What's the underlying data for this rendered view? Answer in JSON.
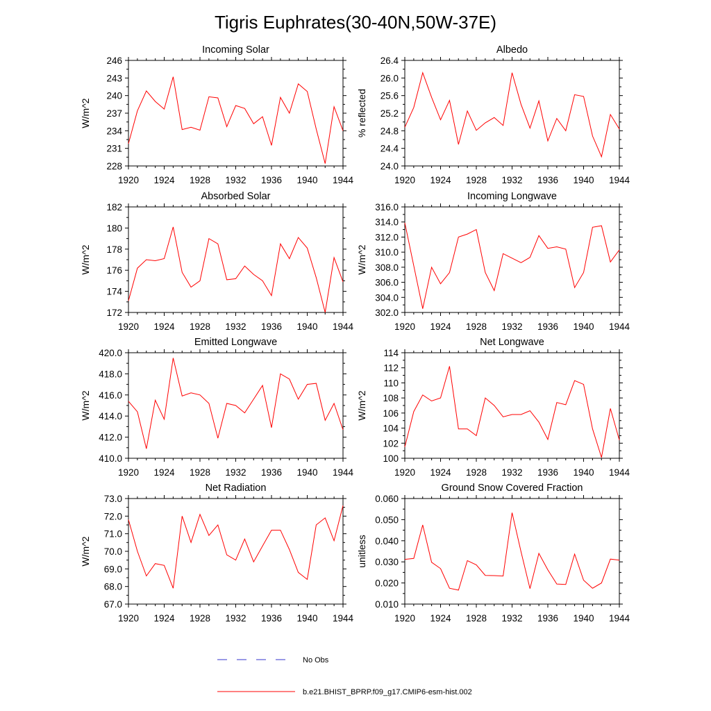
{
  "figure": {
    "title": "Tigris Euphrates(30-40N,50W-37E)"
  },
  "legend": {
    "obs_label": "No Obs",
    "obs_color": "#3333cc",
    "model_label": "b.e21.BHIST_BPRP.f09_g17.CMIP6-esm-hist.002",
    "model_color": "#ff0000"
  },
  "chart_data": [
    {
      "type": "line",
      "title": "Incoming Solar",
      "ylabel": "W/m^2",
      "xlim": [
        1920,
        1944
      ],
      "ylim": [
        228,
        246
      ],
      "xticks": [
        1920,
        1924,
        1928,
        1932,
        1936,
        1940,
        1944
      ],
      "yticks": [
        "228",
        "231",
        "234",
        "237",
        "240",
        "243",
        "246"
      ],
      "x": [
        1920,
        1921,
        1922,
        1923,
        1924,
        1925,
        1926,
        1927,
        1928,
        1929,
        1930,
        1931,
        1932,
        1933,
        1934,
        1935,
        1936,
        1937,
        1938,
        1939,
        1940,
        1941,
        1942,
        1943,
        1944
      ],
      "series": [
        {
          "values": [
            231.8,
            237.4,
            240.8,
            239.0,
            237.7,
            243.2,
            234.2,
            234.6,
            234.1,
            239.8,
            239.6,
            234.7,
            238.3,
            237.8,
            235.2,
            236.4,
            231.5,
            239.7,
            237.0,
            242.0,
            240.7,
            234.3,
            228.4,
            238.1,
            234.0
          ]
        }
      ]
    },
    {
      "type": "line",
      "title": "Albedo",
      "ylabel": "% reflected",
      "xlim": [
        1920,
        1944
      ],
      "ylim": [
        24.0,
        26.4
      ],
      "xticks": [
        1920,
        1924,
        1928,
        1932,
        1936,
        1940,
        1944
      ],
      "yticks": [
        "24.0",
        "24.4",
        "24.8",
        "25.2",
        "25.6",
        "26.0",
        "26.4"
      ],
      "x": [
        1920,
        1921,
        1922,
        1923,
        1924,
        1925,
        1926,
        1927,
        1928,
        1929,
        1930,
        1931,
        1932,
        1933,
        1934,
        1935,
        1936,
        1937,
        1938,
        1939,
        1940,
        1941,
        1942,
        1943,
        1944
      ],
      "series": [
        {
          "values": [
            24.88,
            25.33,
            26.12,
            25.56,
            25.05,
            25.49,
            24.49,
            25.25,
            24.81,
            24.98,
            25.1,
            24.92,
            26.12,
            25.4,
            24.86,
            25.48,
            24.57,
            25.08,
            24.8,
            25.62,
            25.58,
            24.68,
            24.21,
            25.17,
            24.84
          ]
        }
      ]
    },
    {
      "type": "line",
      "title": "Absorbed Solar",
      "ylabel": "W/m^2",
      "xlim": [
        1920,
        1944
      ],
      "ylim": [
        172,
        182
      ],
      "xticks": [
        1920,
        1924,
        1928,
        1932,
        1936,
        1940,
        1944
      ],
      "yticks": [
        "172",
        "174",
        "176",
        "178",
        "180",
        "182"
      ],
      "x": [
        1920,
        1921,
        1922,
        1923,
        1924,
        1925,
        1926,
        1927,
        1928,
        1929,
        1930,
        1931,
        1932,
        1933,
        1934,
        1935,
        1936,
        1937,
        1938,
        1939,
        1940,
        1941,
        1942,
        1943,
        1944
      ],
      "series": [
        {
          "values": [
            173.1,
            176.2,
            177.0,
            176.9,
            177.1,
            180.1,
            175.8,
            174.4,
            175.0,
            179.0,
            178.5,
            175.1,
            175.2,
            176.4,
            175.6,
            175.0,
            173.6,
            178.5,
            177.1,
            179.1,
            178.1,
            175.3,
            172.0,
            177.2,
            174.9
          ]
        }
      ]
    },
    {
      "type": "line",
      "title": "Incoming Longwave",
      "ylabel": "W/m^2",
      "xlim": [
        1920,
        1944
      ],
      "ylim": [
        302,
        316
      ],
      "xticks": [
        1920,
        1924,
        1928,
        1932,
        1936,
        1940,
        1944
      ],
      "yticks": [
        "302.0",
        "304.0",
        "306.0",
        "308.0",
        "310.0",
        "312.0",
        "314.0",
        "316.0"
      ],
      "x": [
        1920,
        1921,
        1922,
        1923,
        1924,
        1925,
        1926,
        1927,
        1928,
        1929,
        1930,
        1931,
        1932,
        1933,
        1934,
        1935,
        1936,
        1937,
        1938,
        1939,
        1940,
        1941,
        1942,
        1943,
        1944
      ],
      "series": [
        {
          "values": [
            313.9,
            308.2,
            302.5,
            308.0,
            305.8,
            307.3,
            312.0,
            312.4,
            313.0,
            307.3,
            304.9,
            309.8,
            309.2,
            308.6,
            309.3,
            312.2,
            310.5,
            310.7,
            310.4,
            305.3,
            307.3,
            313.3,
            313.5,
            308.7,
            310.3
          ]
        }
      ]
    },
    {
      "type": "line",
      "title": "Emitted Longwave",
      "ylabel": "W/m^2",
      "xlim": [
        1920,
        1944
      ],
      "ylim": [
        410,
        420
      ],
      "xticks": [
        1920,
        1924,
        1928,
        1932,
        1936,
        1940,
        1944
      ],
      "yticks": [
        "410.0",
        "412.0",
        "414.0",
        "416.0",
        "418.0",
        "420.0"
      ],
      "x": [
        1920,
        1921,
        1922,
        1923,
        1924,
        1925,
        1926,
        1927,
        1928,
        1929,
        1930,
        1931,
        1932,
        1933,
        1934,
        1935,
        1936,
        1937,
        1938,
        1939,
        1940,
        1941,
        1942,
        1943,
        1944
      ],
      "series": [
        {
          "values": [
            415.4,
            414.4,
            410.9,
            415.5,
            413.7,
            419.5,
            415.9,
            416.2,
            416.0,
            415.2,
            411.9,
            415.2,
            415.0,
            414.3,
            415.6,
            416.9,
            412.9,
            418.0,
            417.5,
            415.6,
            417.0,
            417.1,
            413.6,
            415.2,
            412.7
          ]
        }
      ]
    },
    {
      "type": "line",
      "title": "Net Longwave",
      "ylabel": "W/m^2",
      "xlim": [
        1920,
        1944
      ],
      "ylim": [
        100,
        114
      ],
      "xticks": [
        1920,
        1924,
        1928,
        1932,
        1936,
        1940,
        1944
      ],
      "yticks": [
        "100",
        "102",
        "104",
        "106",
        "108",
        "110",
        "112",
        "114"
      ],
      "x": [
        1920,
        1921,
        1922,
        1923,
        1924,
        1925,
        1926,
        1927,
        1928,
        1929,
        1930,
        1931,
        1932,
        1933,
        1934,
        1935,
        1936,
        1937,
        1938,
        1939,
        1940,
        1941,
        1942,
        1943,
        1944
      ],
      "series": [
        {
          "values": [
            101.5,
            106.2,
            108.4,
            107.6,
            108.0,
            112.2,
            103.9,
            103.9,
            103.0,
            108.0,
            107.0,
            105.5,
            105.8,
            105.8,
            106.3,
            104.8,
            102.5,
            107.4,
            107.1,
            110.3,
            109.8,
            103.9,
            100.1,
            106.6,
            102.4
          ]
        }
      ]
    },
    {
      "type": "line",
      "title": "Net Radiation",
      "ylabel": "W/m^2",
      "xlim": [
        1920,
        1944
      ],
      "ylim": [
        67,
        73
      ],
      "xticks": [
        1920,
        1924,
        1928,
        1932,
        1936,
        1940,
        1944
      ],
      "yticks": [
        "67.0",
        "68.0",
        "69.0",
        "70.0",
        "71.0",
        "72.0",
        "73.0"
      ],
      "x": [
        1920,
        1921,
        1922,
        1923,
        1924,
        1925,
        1926,
        1927,
        1928,
        1929,
        1930,
        1931,
        1932,
        1933,
        1934,
        1935,
        1936,
        1937,
        1938,
        1939,
        1940,
        1941,
        1942,
        1943,
        1944
      ],
      "series": [
        {
          "values": [
            71.8,
            70.0,
            68.6,
            69.3,
            69.2,
            67.9,
            72.0,
            70.5,
            72.1,
            70.9,
            71.5,
            69.8,
            69.5,
            70.7,
            69.4,
            70.3,
            71.2,
            71.2,
            70.1,
            68.8,
            68.4,
            71.5,
            71.9,
            70.6,
            72.6
          ]
        }
      ]
    },
    {
      "type": "line",
      "title": "Ground Snow Covered Fraction",
      "ylabel": "unitless",
      "xlim": [
        1920,
        1944
      ],
      "ylim": [
        0.01,
        0.06
      ],
      "xticks": [
        1920,
        1924,
        1928,
        1932,
        1936,
        1940,
        1944
      ],
      "yticks": [
        "0.010",
        "0.020",
        "0.030",
        "0.040",
        "0.050",
        "0.060"
      ],
      "x": [
        1920,
        1921,
        1922,
        1923,
        1924,
        1925,
        1926,
        1927,
        1928,
        1929,
        1930,
        1931,
        1932,
        1933,
        1934,
        1935,
        1936,
        1937,
        1938,
        1939,
        1940,
        1941,
        1942,
        1943,
        1944
      ],
      "series": [
        {
          "values": [
            0.0312,
            0.0316,
            0.0475,
            0.0298,
            0.0268,
            0.0175,
            0.0166,
            0.0306,
            0.0286,
            0.0236,
            0.0235,
            0.0233,
            0.0533,
            0.0348,
            0.0173,
            0.034,
            0.0262,
            0.0195,
            0.0193,
            0.0337,
            0.0213,
            0.0175,
            0.02,
            0.0313,
            0.0308
          ]
        }
      ]
    }
  ]
}
